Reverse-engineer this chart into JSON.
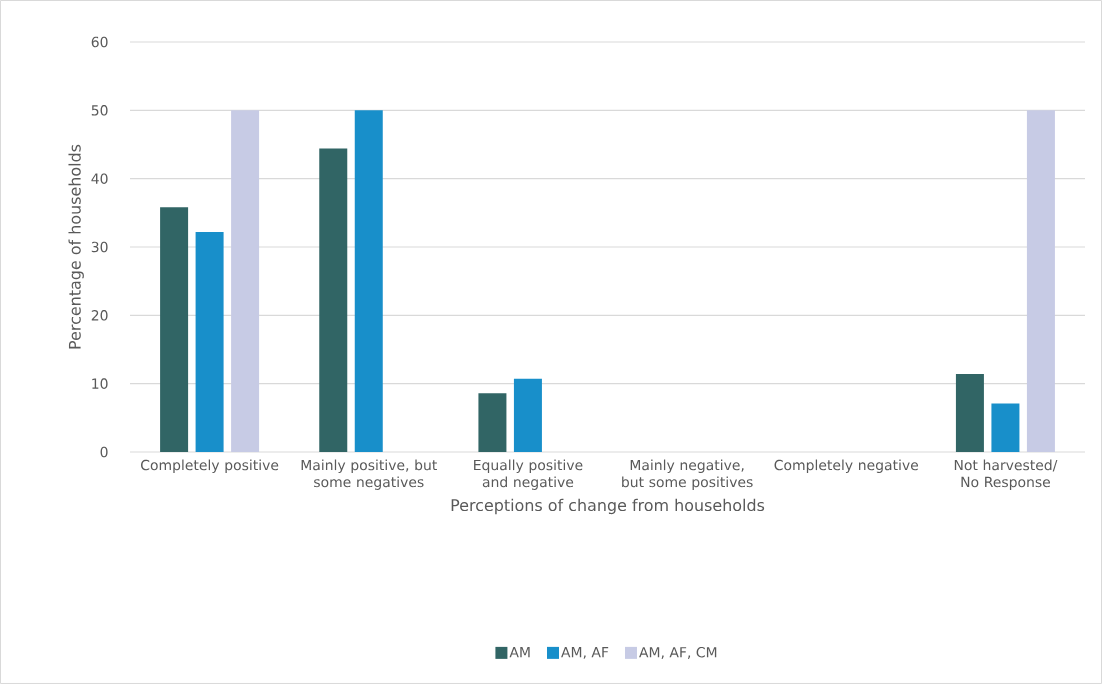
{
  "chart_data": {
    "type": "bar",
    "xlabel": "Perceptions of change from households",
    "ylabel": "Percentage of households",
    "categories": [
      "Completely positive",
      "Mainly positive, but some negatives",
      "Equally positive and negative",
      "Mainly negative, but some positives",
      "Completely negative",
      "Not harvested/ No Response"
    ],
    "series": [
      {
        "name": "AM",
        "color": "#316565",
        "values": [
          35.8,
          44.4,
          8.6,
          0,
          0,
          11.4
        ]
      },
      {
        "name": "AM, AF",
        "color": "#188fca",
        "values": [
          32.2,
          50,
          10.7,
          0,
          0,
          7.1
        ]
      },
      {
        "name": "AM, AF, CM",
        "color": "#c7cbe5",
        "values": [
          50,
          0,
          0,
          0,
          0,
          50
        ]
      }
    ],
    "ylim": [
      0,
      60
    ],
    "yticks": [
      0,
      10,
      20,
      30,
      40,
      50,
      60
    ],
    "grid": "y",
    "legend": "bottom"
  }
}
